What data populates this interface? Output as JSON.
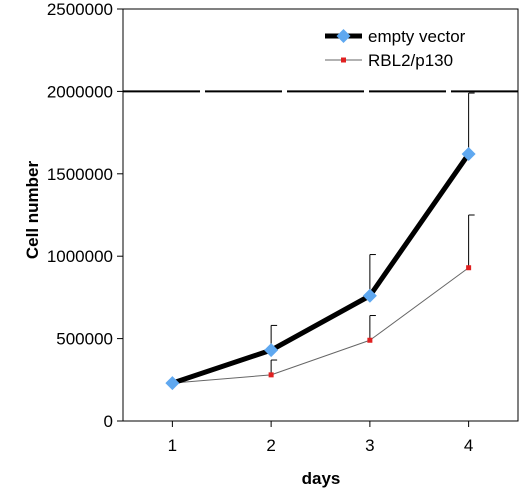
{
  "chart_data": {
    "type": "line",
    "xlabel": "days",
    "ylabel": "Cell number",
    "x": [
      1,
      2,
      3,
      4
    ],
    "x_tick_labels": [
      "1",
      "2",
      "3",
      "4"
    ],
    "ylim": [
      0,
      2500000
    ],
    "y_ticks": [
      0,
      500000,
      1000000,
      1500000,
      2000000,
      2500000
    ],
    "y_tick_labels": [
      "0",
      "500000",
      "1000000",
      "1500000",
      "2000000",
      "2500000"
    ],
    "series": [
      {
        "name": "empty vector",
        "values": [
          230000,
          430000,
          760000,
          1620000
        ],
        "error_upper": [
          0,
          150000,
          250000,
          370000
        ],
        "line_color": "#000000",
        "marker": "diamond",
        "marker_color": "#5fa8f0"
      },
      {
        "name": "RBL2/p130",
        "values": [
          230000,
          280000,
          490000,
          930000
        ],
        "error_upper": [
          0,
          90000,
          150000,
          320000
        ],
        "line_color": "#666666",
        "marker": "square",
        "marker_color": "#e02020"
      }
    ],
    "reference_line": {
      "y": 2000000,
      "style": "dashed",
      "color": "#000000"
    },
    "grid": false,
    "legend_position": "top-right"
  }
}
